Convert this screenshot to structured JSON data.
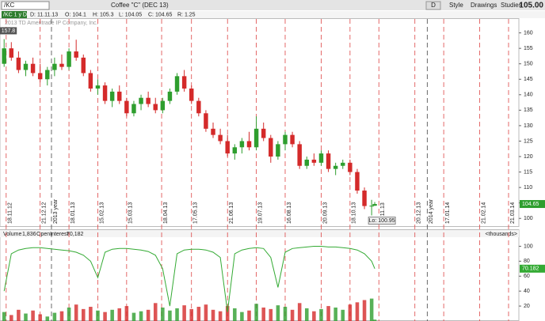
{
  "toolbar": {
    "symbol": "/KC",
    "description": "Coffee \"C\" (DEC 13)",
    "aggregation": "D",
    "style": "Style",
    "drawings": "Drawings",
    "studies": "Studies",
    "last": "105.00"
  },
  "info": {
    "study": "/KC 1 y D",
    "date": "D: 11.11.13",
    "open": "O: 104.1",
    "high": "H: 105.3",
    "low": "L: 104.05",
    "close": "C: 104.65",
    "range": "R: 1.25"
  },
  "watermark": "2013 TD Ameritrade IP Company, Inc.",
  "chart_data": [
    {
      "type": "candlestick",
      "x": [
        "16.11.12",
        "23.11.12",
        "30.11.12",
        "07.12.12",
        "14.12.12",
        "21.12.12",
        "28.12.12",
        "04.01.13",
        "11.01.13",
        "18.01.13",
        "25.01.13",
        "01.02.13",
        "08.02.13",
        "15.02.13",
        "22.02.13",
        "01.03.13",
        "08.03.13",
        "15.03.13",
        "22.03.13",
        "29.03.13",
        "05.04.13",
        "12.04.13",
        "19.04.13",
        "26.04.13",
        "03.05.13",
        "10.05.13",
        "17.05.13",
        "24.05.13",
        "31.05.13",
        "07.06.13",
        "14.06.13",
        "21.06.13",
        "28.06.13",
        "05.07.13",
        "12.07.13",
        "19.07.13",
        "26.07.13",
        "02.08.13",
        "09.08.13",
        "16.08.13",
        "23.08.13",
        "30.08.13",
        "06.09.13",
        "13.09.13",
        "20.09.13",
        "27.09.13",
        "04.10.13",
        "11.10.13",
        "18.10.13",
        "25.10.13",
        "01.11.13",
        "08.11.13",
        "11.11.13"
      ],
      "open": [
        150,
        155,
        152,
        148,
        150,
        147,
        145,
        148,
        150,
        149,
        154,
        152,
        147,
        142,
        143,
        138,
        141,
        138,
        134,
        137,
        139,
        137,
        135,
        138,
        141,
        146,
        142,
        138,
        134,
        129,
        127,
        125,
        121,
        123,
        125,
        123,
        129,
        126,
        120,
        124,
        127,
        124,
        117,
        119,
        118,
        121,
        116,
        117,
        118,
        115,
        109,
        104,
        104.1
      ],
      "high": [
        158,
        157,
        154,
        151,
        152,
        150,
        149,
        152,
        153,
        155,
        157.8,
        153,
        148,
        145,
        144,
        142,
        143,
        139,
        138,
        140,
        141,
        139,
        139,
        142,
        147,
        148,
        143,
        139,
        135,
        131,
        129,
        127,
        124,
        126,
        128,
        133,
        131,
        127,
        125,
        128,
        128,
        125,
        120,
        121,
        122,
        122,
        118,
        119,
        119,
        116,
        110,
        106,
        105.3
      ],
      "low": [
        149,
        151,
        147,
        146,
        146,
        144,
        143,
        146,
        148,
        148,
        151,
        146,
        141,
        140,
        137,
        136,
        137,
        133,
        133,
        135,
        136,
        134,
        134,
        137,
        140,
        141,
        137,
        133,
        128,
        126,
        124,
        120,
        119,
        121,
        122,
        122,
        125,
        118,
        119,
        122,
        123,
        116,
        116,
        117,
        117,
        115,
        114,
        116,
        114,
        108,
        103,
        100.95,
        104.05
      ],
      "close": [
        155,
        152,
        148,
        150,
        147,
        145,
        148,
        150,
        149,
        154,
        152,
        147,
        142,
        143,
        138,
        141,
        138,
        134,
        137,
        139,
        137,
        135,
        138,
        141,
        146,
        142,
        138,
        134,
        129,
        127,
        125,
        121,
        123,
        125,
        123,
        129,
        126,
        120,
        124,
        127,
        124,
        117,
        119,
        118,
        121,
        116,
        117,
        118,
        115,
        109,
        104,
        104.1,
        104.65
      ],
      "up_color": "#2e9e2e",
      "down_color": "#d42a2a",
      "xlim": [
        "12.11.12",
        "31.03.14"
      ],
      "xticks": [
        "18.11.12",
        "21.12.12",
        {
          "value": "01.01.13",
          "label": "2013 year"
        },
        "18.01.13",
        "15.02.13",
        "15.03.13",
        "18.04.13",
        "17.05.13",
        "21.06.13",
        "19.07.13",
        "16.08.13",
        "20.09.13",
        "18.10.13",
        "15.11.13",
        "20.12.13",
        {
          "value": "01.01.14",
          "label": "2014 year"
        },
        "17.01.14",
        "21.02.14",
        "21.03.14"
      ],
      "ylim": [
        97.5,
        164.5
      ],
      "yticks": [
        100,
        105,
        110,
        115,
        120,
        125,
        130,
        135,
        140,
        145,
        150,
        155,
        160
      ],
      "annotations": {
        "high": "Hi: 157.8",
        "low": "Lo: 100.95"
      },
      "last_label": "104.65"
    },
    {
      "type": "volume",
      "title": "Volume",
      "volume_text": "1,836",
      "oi_title": "OpenInterest",
      "oi_text": "70,182",
      "units": "<thousands>",
      "volume": [
        12,
        8,
        15,
        10,
        14,
        9,
        6,
        11,
        13,
        18,
        22,
        16,
        19,
        14,
        12,
        15,
        17,
        20,
        11,
        13,
        15,
        24,
        18,
        14,
        17,
        21,
        16,
        19,
        22,
        15,
        13,
        20,
        17,
        12,
        14,
        23,
        18,
        16,
        21,
        19,
        15,
        24,
        17,
        13,
        16,
        20,
        18,
        15,
        22,
        25,
        28,
        30,
        1.836
      ],
      "open_interest": [
        40,
        90,
        95,
        97,
        98,
        98,
        97,
        96,
        95,
        94,
        92,
        88,
        80,
        58,
        92,
        96,
        97,
        97,
        96,
        95,
        93,
        88,
        70,
        20,
        90,
        95,
        96,
        96,
        95,
        92,
        85,
        12,
        90,
        95,
        97,
        98,
        97,
        85,
        45,
        92,
        97,
        98,
        99,
        100,
        100,
        99,
        99,
        98,
        97,
        95,
        90,
        80,
        70
      ],
      "oi_color": "#33aa33",
      "ylim": [
        0,
        110
      ],
      "yticks": [
        20,
        40,
        60,
        80,
        100
      ],
      "last_label": "70.182"
    }
  ]
}
